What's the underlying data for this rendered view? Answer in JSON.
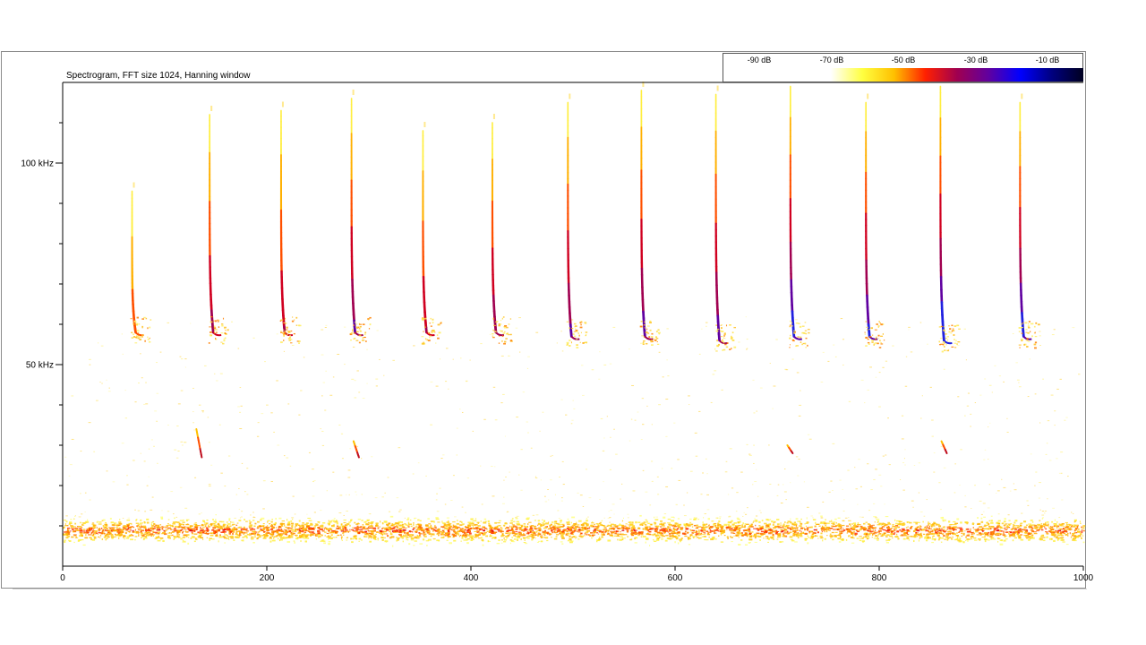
{
  "chart_data": {
    "type": "heatmap",
    "title": "Spectrogram, FFT size 1024, Hanning window",
    "xlim": [
      0,
      1000
    ],
    "ylim": [
      0,
      120
    ],
    "x_ticks": [
      0,
      200,
      400,
      600,
      800,
      1000
    ],
    "y_tick_labels": [
      {
        "value": 100,
        "label": "100 kHz"
      },
      {
        "value": 50,
        "label": "50 kHz"
      }
    ],
    "y_minor_ticks": [
      10,
      20,
      30,
      40,
      60,
      70,
      80,
      90,
      110
    ],
    "colorbar": {
      "labels": [
        "-90 dB",
        "-70 dB",
        "-50 dB",
        "-30 dB",
        "-10 dB"
      ],
      "stops": [
        "#ffffff",
        "#ffff40",
        "#ffc000",
        "#ff2000",
        "#a00050",
        "#6000a0",
        "#0000ff",
        "#000080",
        "#000020"
      ]
    },
    "calls": [
      {
        "x": 68,
        "f_start": 93,
        "f_end": 58,
        "level": 0.35
      },
      {
        "x": 144,
        "f_start": 112,
        "f_end": 58,
        "level": 0.6
      },
      {
        "x": 214,
        "f_start": 113,
        "f_end": 58,
        "level": 0.55
      },
      {
        "x": 283,
        "f_start": 116,
        "f_end": 58,
        "level": 0.7
      },
      {
        "x": 353,
        "f_start": 108,
        "f_end": 58,
        "level": 0.55
      },
      {
        "x": 421,
        "f_start": 110,
        "f_end": 58,
        "level": 0.65
      },
      {
        "x": 495,
        "f_start": 115,
        "f_end": 57,
        "level": 0.7
      },
      {
        "x": 567,
        "f_start": 118,
        "f_end": 57,
        "level": 0.75
      },
      {
        "x": 640,
        "f_start": 117,
        "f_end": 56,
        "level": 0.75
      },
      {
        "x": 713,
        "f_start": 119,
        "f_end": 57,
        "level": 0.85
      },
      {
        "x": 787,
        "f_start": 115,
        "f_end": 57,
        "level": 0.8
      },
      {
        "x": 860,
        "f_start": 119,
        "f_end": 56,
        "level": 0.9
      },
      {
        "x": 938,
        "f_start": 115,
        "f_end": 57,
        "level": 0.85
      }
    ],
    "low_calls": [
      {
        "x": 131,
        "f_start": 34,
        "f_end": 27
      },
      {
        "x": 285,
        "f_start": 31,
        "f_end": 27
      },
      {
        "x": 710,
        "f_start": 30,
        "f_end": 28
      },
      {
        "x": 861,
        "f_start": 31,
        "f_end": 28
      }
    ],
    "noise_band": {
      "center_khz": 9,
      "width_khz": 4
    }
  }
}
